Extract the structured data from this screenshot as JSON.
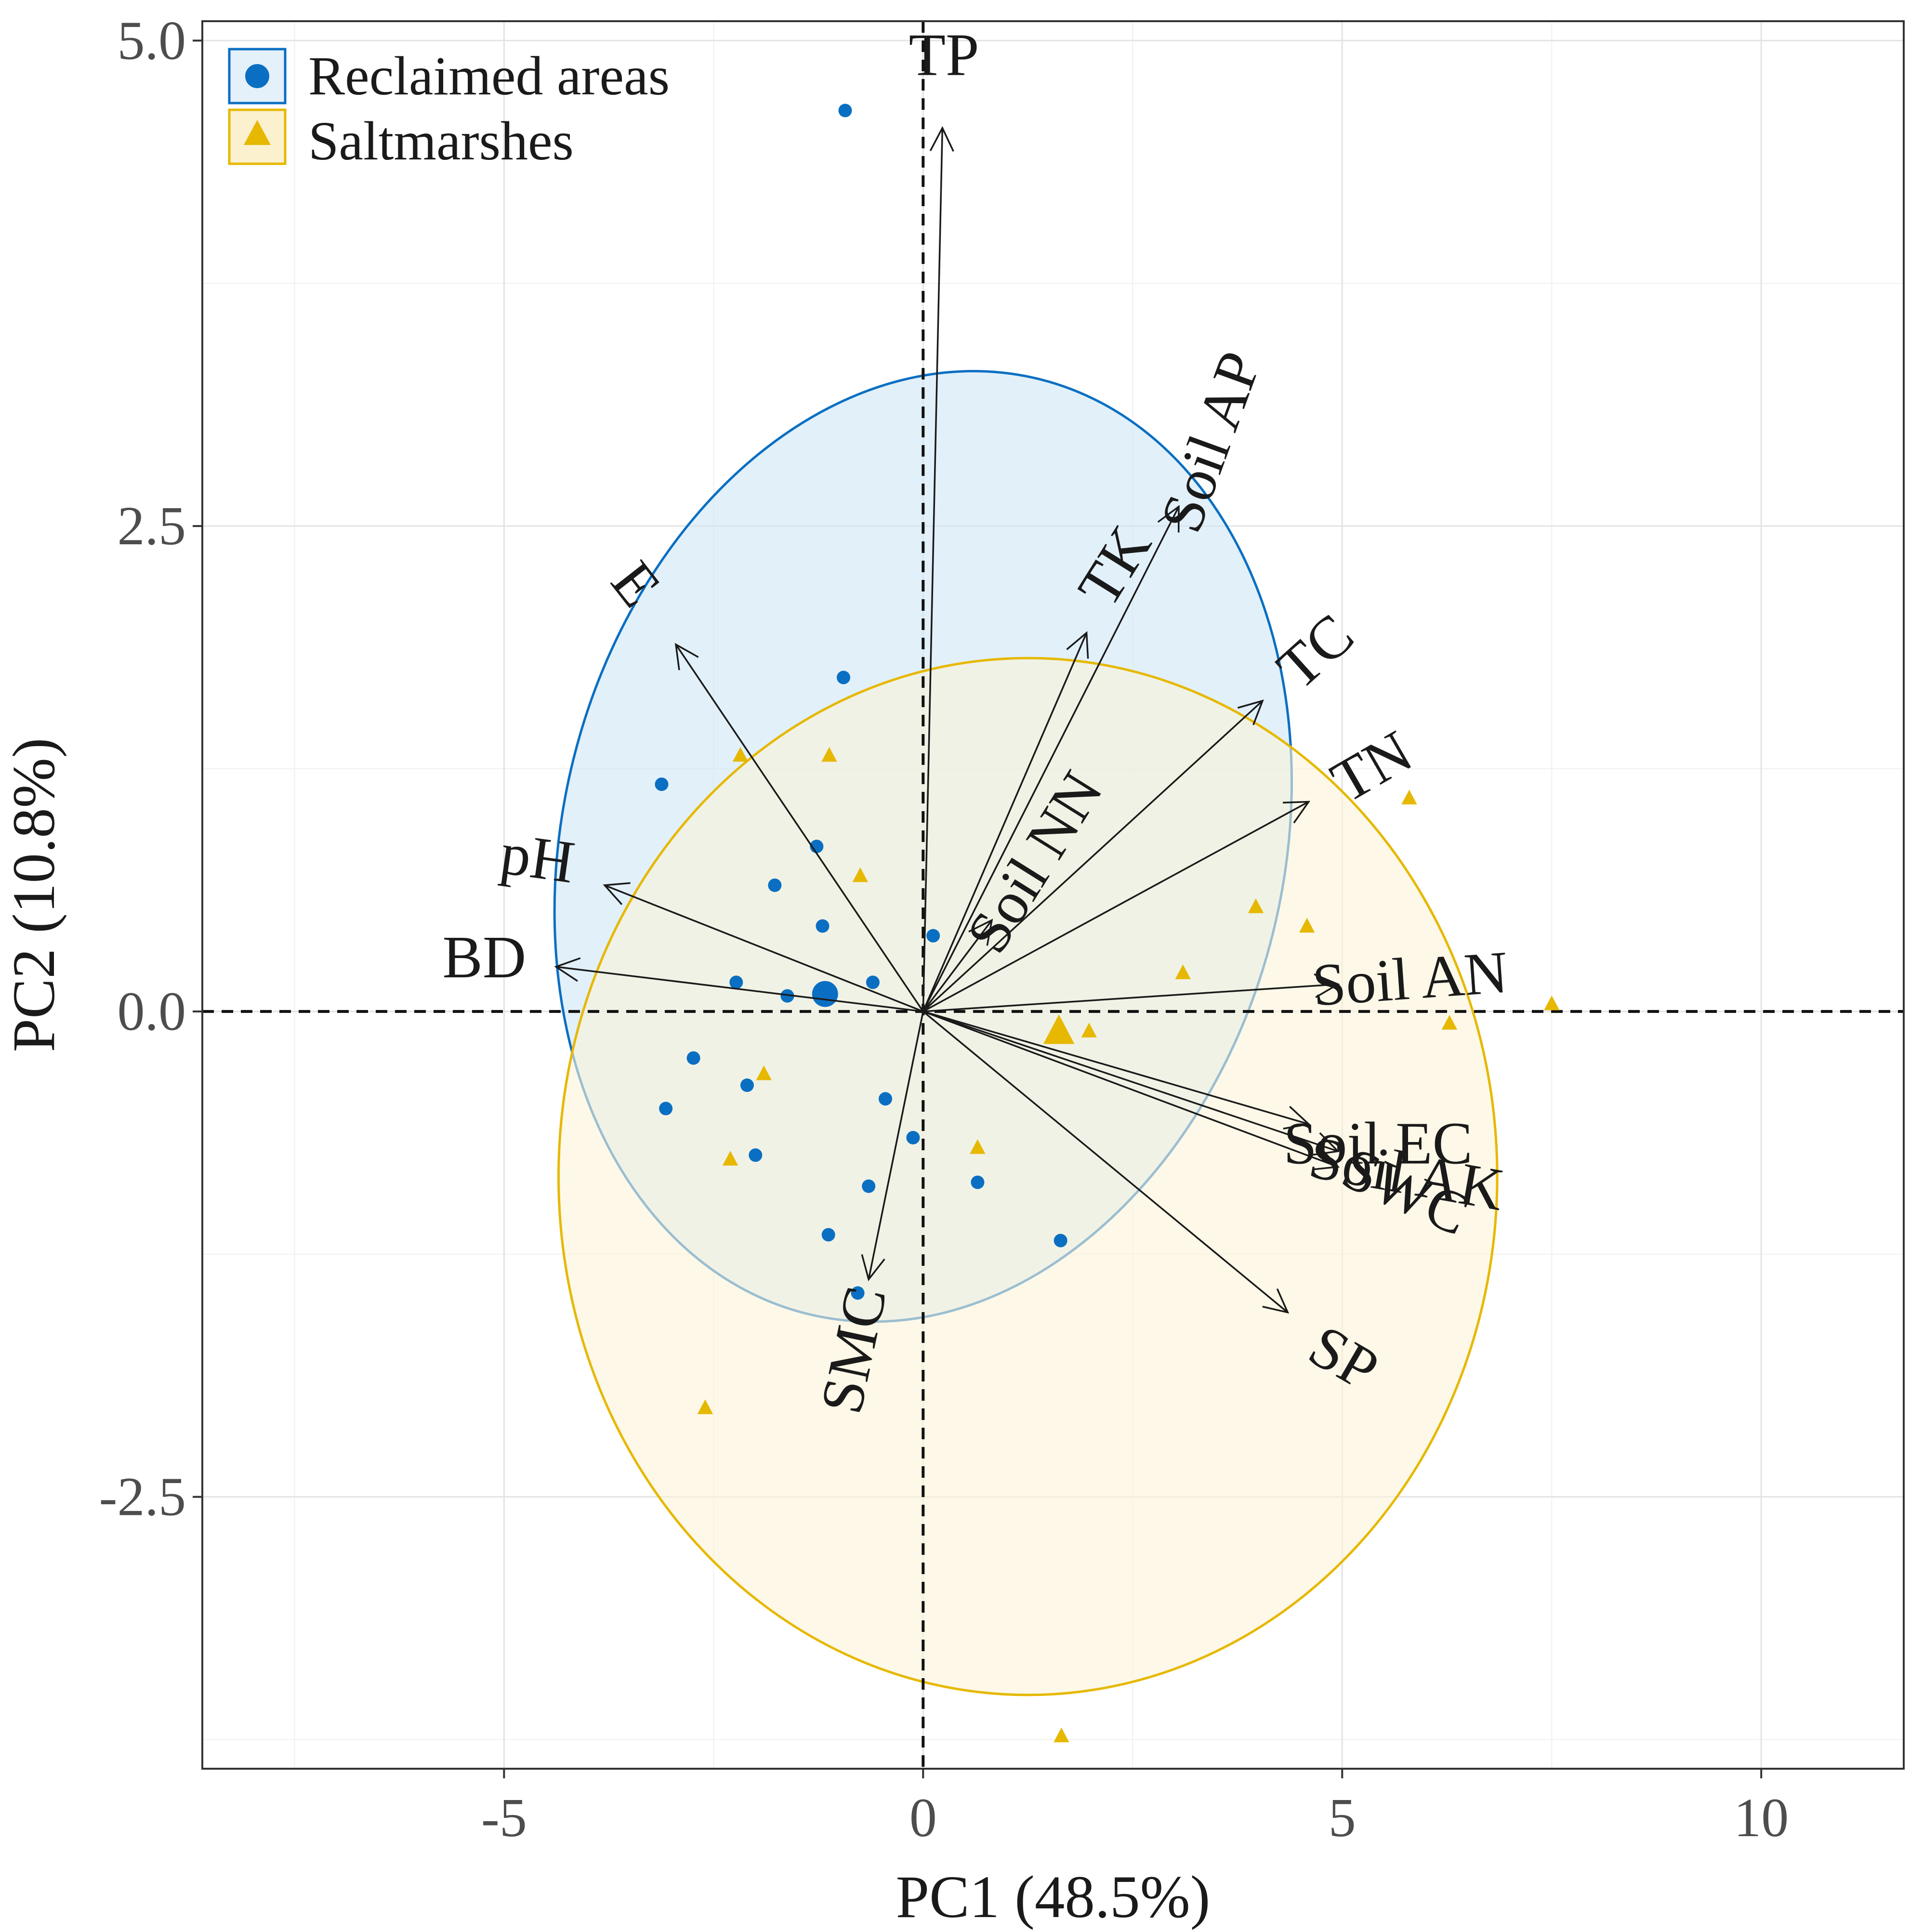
{
  "chart_data": {
    "type": "scatter",
    "subtype": "pca-biplot",
    "xlabel": "PC1 (48.5%)",
    "ylabel": "PC2 (10.8%)",
    "xlim": [
      -8.6,
      11.7
    ],
    "ylim": [
      -3.9,
      5.1
    ],
    "x_ticks": [
      {
        "value": -5,
        "label": "-5"
      },
      {
        "value": 0,
        "label": "0"
      },
      {
        "value": 5,
        "label": "5"
      },
      {
        "value": 10,
        "label": "10"
      }
    ],
    "y_ticks": [
      {
        "value": 5.0,
        "label": "5.0"
      },
      {
        "value": 2.5,
        "label": "2.5"
      },
      {
        "value": 0.0,
        "label": "0.0"
      },
      {
        "value": -2.5,
        "label": "-2.5"
      }
    ],
    "minor_x": [
      -7.5,
      -2.5,
      2.5,
      7.5
    ],
    "minor_y": [
      3.75,
      1.25,
      -1.25,
      -3.75
    ],
    "legend": {
      "position": "top-left",
      "entries": [
        {
          "label": "Reclaimed areas",
          "color": "#0a6fc2",
          "marker": "circle"
        },
        {
          "label": "Saltmarshes",
          "color": "#e6b800",
          "marker": "triangle"
        }
      ]
    },
    "series": [
      {
        "name": "Reclaimed areas",
        "color": "#0a6fc2",
        "fill": "#cfe6f6",
        "marker": "circle",
        "centroid": [
          -1.17,
          0.09
        ],
        "ellipse": {
          "cx": 0.0,
          "cy": 0.85,
          "rx": 4.3,
          "ry": 2.48,
          "angle_deg": 14
        },
        "points": [
          [
            -0.93,
            4.64
          ],
          [
            -0.95,
            1.72
          ],
          [
            -3.12,
            1.17
          ],
          [
            -1.27,
            0.85
          ],
          [
            -1.77,
            0.65
          ],
          [
            -1.2,
            0.44
          ],
          [
            -2.23,
            0.15
          ],
          [
            -1.62,
            0.08
          ],
          [
            -0.6,
            0.15
          ],
          [
            0.12,
            0.39
          ],
          [
            -2.74,
            -0.24
          ],
          [
            -2.1,
            -0.38
          ],
          [
            -3.07,
            -0.5
          ],
          [
            -0.45,
            -0.45
          ],
          [
            -0.12,
            -0.65
          ],
          [
            -2.0,
            -0.74
          ],
          [
            -0.65,
            -0.9
          ],
          [
            0.65,
            -0.88
          ],
          [
            -1.13,
            -1.15
          ],
          [
            -0.78,
            -1.45
          ],
          [
            1.64,
            -1.18
          ]
        ]
      },
      {
        "name": "Saltmarshes",
        "color": "#e6b800",
        "fill": "#fbf3d9",
        "marker": "triangle",
        "centroid": [
          1.62,
          -0.1
        ],
        "ellipse": {
          "cx": 1.25,
          "cy": -0.85,
          "rx": 5.6,
          "ry": 2.67,
          "angle_deg": 0
        },
        "points": [
          [
            -2.18,
            1.32
          ],
          [
            -1.12,
            1.32
          ],
          [
            -0.75,
            0.7
          ],
          [
            -1.9,
            -0.32
          ],
          [
            -2.3,
            -0.76
          ],
          [
            -2.6,
            -2.04
          ],
          [
            0.65,
            -0.7
          ],
          [
            1.98,
            -0.1
          ],
          [
            3.1,
            0.2
          ],
          [
            3.97,
            0.54
          ],
          [
            4.58,
            0.44
          ],
          [
            5.8,
            1.1
          ],
          [
            6.28,
            -0.06
          ],
          [
            7.5,
            0.04
          ],
          [
            1.65,
            -3.73
          ]
        ]
      }
    ],
    "loadings": [
      {
        "label": "TP",
        "x": 0.23,
        "y": 4.55
      },
      {
        "label": "Soil AP",
        "x": 3.05,
        "y": 2.6
      },
      {
        "label": "TK",
        "x": 1.95,
        "y": 1.95
      },
      {
        "label": "TC",
        "x": 4.05,
        "y": 1.6
      },
      {
        "label": "TN",
        "x": 4.6,
        "y": 1.08
      },
      {
        "label": "Soil NN",
        "x": 0.82,
        "y": 0.47
      },
      {
        "label": "E",
        "x": -2.95,
        "y": 1.89
      },
      {
        "label": "pH",
        "x": -3.8,
        "y": 0.65
      },
      {
        "label": "BD",
        "x": -4.38,
        "y": 0.23
      },
      {
        "label": "Soil AN",
        "x": 4.95,
        "y": 0.14
      },
      {
        "label": "Soil EC",
        "x": 4.6,
        "y": -0.58
      },
      {
        "label": "Soil AK",
        "x": 4.95,
        "y": -0.72
      },
      {
        "label": "SWC",
        "x": 4.95,
        "y": -0.8
      },
      {
        "label": "SP",
        "x": 4.35,
        "y": -1.55
      },
      {
        "label": "SMC",
        "x": -0.65,
        "y": -1.38
      }
    ],
    "reference_lines": {
      "x": 0,
      "y": 0,
      "style": "dashed"
    }
  }
}
